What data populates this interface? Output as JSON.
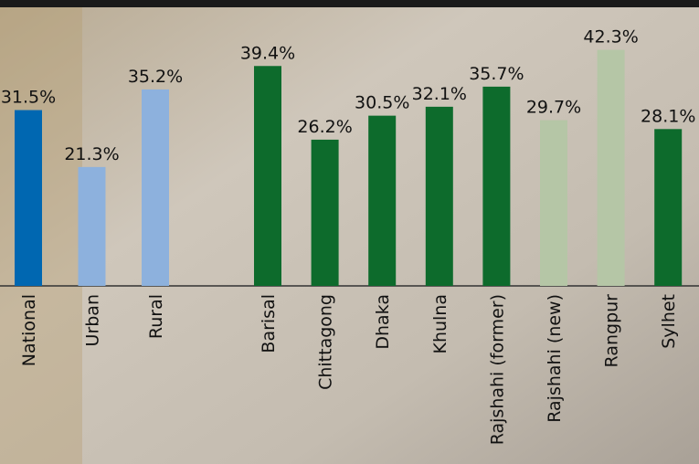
{
  "chart_data": {
    "type": "bar",
    "categories": [
      "National",
      "Urban",
      "Rural",
      "Barisal",
      "Chittagong",
      "Dhaka",
      "Khulna",
      "Rajshahi (former)",
      "Rajshahi (new)",
      "Rangpur",
      "Sylhet"
    ],
    "values": [
      31.5,
      21.3,
      35.2,
      39.4,
      26.2,
      30.5,
      32.1,
      35.7,
      29.7,
      42.3,
      28.1
    ],
    "value_labels": [
      "31.5%",
      "21.3%",
      "35.2%",
      "39.4%",
      "26.2%",
      "30.5%",
      "32.1%",
      "35.7%",
      "29.7%",
      "42.3%",
      "28.1%"
    ],
    "colors": [
      "#0067b1",
      "#8db1dd",
      "#8db1dd",
      "#0d6b2c",
      "#0d6b2c",
      "#0d6b2c",
      "#0d6b2c",
      "#0d6b2c",
      "#b5c6a6",
      "#b5c6a6",
      "#0d6b2c"
    ]
  }
}
